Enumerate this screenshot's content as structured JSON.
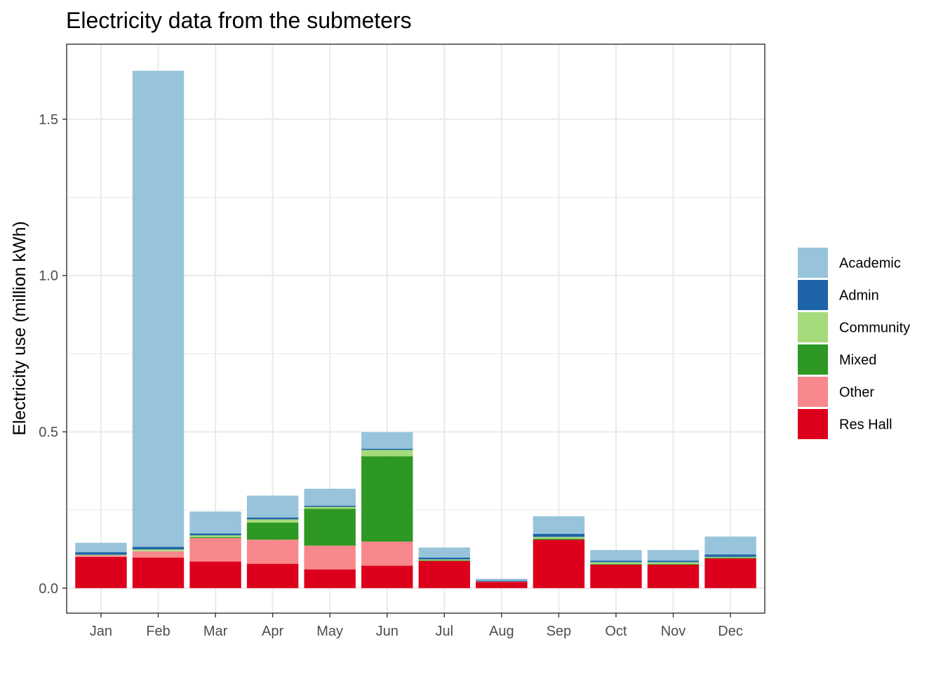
{
  "chart_data": {
    "type": "bar",
    "stacked": true,
    "title": "Electricity data from the submeters",
    "xlabel": "",
    "ylabel": "Electricity use (million kWh)",
    "ylim": [
      -0.08,
      1.74
    ],
    "yticks": [
      0.0,
      0.5,
      1.0,
      1.5
    ],
    "ytick_labels": [
      "0.0",
      "0.5",
      "1.0",
      "1.5"
    ],
    "grid": true,
    "legend_position": "right",
    "categories": [
      "Jan",
      "Feb",
      "Mar",
      "Apr",
      "May",
      "Jun",
      "Jul",
      "Aug",
      "Sep",
      "Oct",
      "Nov",
      "Dec"
    ],
    "series": [
      {
        "name": "Res Hall",
        "color": "#DC001C",
        "values": [
          0.1,
          0.098,
          0.085,
          0.078,
          0.06,
          0.072,
          0.087,
          0.02,
          0.155,
          0.075,
          0.075,
          0.095
        ]
      },
      {
        "name": "Other",
        "color": "#F8888B",
        "values": [
          0.005,
          0.02,
          0.075,
          0.077,
          0.076,
          0.077,
          0.0,
          0.001,
          0.0,
          0.0,
          0.0,
          0.0
        ]
      },
      {
        "name": "Mixed",
        "color": "#2D9823",
        "values": [
          0.0,
          0.0,
          0.003,
          0.055,
          0.118,
          0.273,
          0.002,
          0.0,
          0.003,
          0.002,
          0.002,
          0.002
        ]
      },
      {
        "name": "Community",
        "color": "#A6DB7C",
        "values": [
          0.002,
          0.006,
          0.006,
          0.01,
          0.006,
          0.02,
          0.003,
          0.0,
          0.006,
          0.006,
          0.006,
          0.003
        ]
      },
      {
        "name": "Admin",
        "color": "#1E64A8",
        "values": [
          0.008,
          0.008,
          0.006,
          0.006,
          0.004,
          0.004,
          0.006,
          0.003,
          0.01,
          0.005,
          0.005,
          0.008
        ]
      },
      {
        "name": "Academic",
        "color": "#97C4DB",
        "values": [
          0.03,
          1.523,
          0.07,
          0.07,
          0.054,
          0.053,
          0.032,
          0.006,
          0.056,
          0.034,
          0.034,
          0.057
        ]
      }
    ],
    "legend_order": [
      "Academic",
      "Admin",
      "Community",
      "Mixed",
      "Other",
      "Res Hall"
    ]
  }
}
